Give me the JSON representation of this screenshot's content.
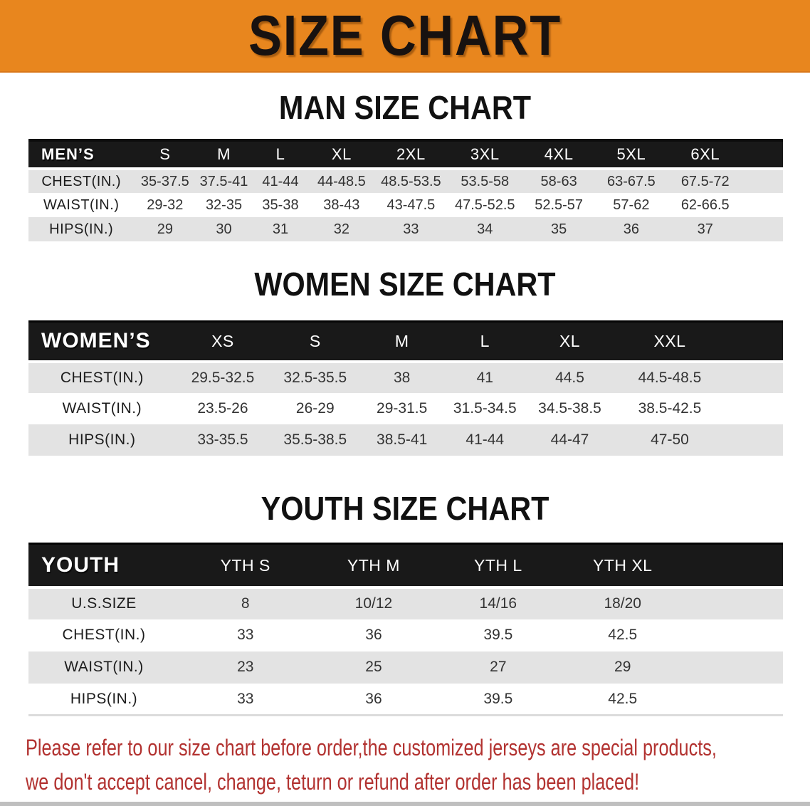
{
  "banner": {
    "title": "SIZE CHART"
  },
  "colors": {
    "banner_bg": "#e8861e",
    "header_bar": "#191919",
    "row_stripe": "#e3e3e3",
    "note_red": "#b23230"
  },
  "sections": [
    {
      "id": "men",
      "heading": "MAN SIZE CHART",
      "table": {
        "header_label": "MEN’S",
        "columns": [
          "S",
          "M",
          "L",
          "XL",
          "2XL",
          "3XL",
          "4XL",
          "5XL",
          "6XL"
        ],
        "rows": [
          {
            "label": "CHEST(IN.)",
            "values": [
              "35-37.5",
              "37.5-41",
              "41-44",
              "44-48.5",
              "48.5-53.5",
              "53.5-58",
              "58-63",
              "63-67.5",
              "67.5-72"
            ]
          },
          {
            "label": "WAIST(IN.)",
            "values": [
              "29-32",
              "32-35",
              "35-38",
              "38-43",
              "43-47.5",
              "47.5-52.5",
              "52.5-57",
              "57-62",
              "62-66.5"
            ]
          },
          {
            "label": "HIPS(IN.)",
            "values": [
              "29",
              "30",
              "31",
              "32",
              "33",
              "34",
              "35",
              "36",
              "37"
            ]
          }
        ]
      }
    },
    {
      "id": "women",
      "heading": "WOMEN SIZE CHART",
      "table": {
        "header_label": "WOMEN’S",
        "columns": [
          "XS",
          "S",
          "M",
          "L",
          "XL",
          "XXL"
        ],
        "rows": [
          {
            "label": "CHEST(IN.)",
            "values": [
              "29.5-32.5",
              "32.5-35.5",
              "38",
              "41",
              "44.5",
              "44.5-48.5"
            ]
          },
          {
            "label": "WAIST(IN.)",
            "values": [
              "23.5-26",
              "26-29",
              "29-31.5",
              "31.5-34.5",
              "34.5-38.5",
              "38.5-42.5"
            ]
          },
          {
            "label": "HIPS(IN.)",
            "values": [
              "33-35.5",
              "35.5-38.5",
              "38.5-41",
              "41-44",
              "44-47",
              "47-50"
            ]
          }
        ]
      }
    },
    {
      "id": "youth",
      "heading": "YOUTH SIZE CHART",
      "table": {
        "header_label": "YOUTH",
        "columns": [
          "YTH S",
          "YTH M",
          "YTH L",
          "YTH XL"
        ],
        "rows": [
          {
            "label": "U.S.SIZE",
            "values": [
              "8",
              "10/12",
              "14/16",
              "18/20"
            ]
          },
          {
            "label": "CHEST(IN.)",
            "values": [
              "33",
              "36",
              "39.5",
              "42.5"
            ]
          },
          {
            "label": "WAIST(IN.)",
            "values": [
              "23",
              "25",
              "27",
              "29"
            ]
          },
          {
            "label": "HIPS(IN.)",
            "values": [
              "33",
              "36",
              "39.5",
              "42.5"
            ]
          }
        ]
      }
    }
  ],
  "footnote": {
    "lines": [
      "Please refer to our size chart before order,the customized jerseys are special products,",
      "we don't accept cancel, change, teturn or refund after order has been placed!"
    ]
  }
}
